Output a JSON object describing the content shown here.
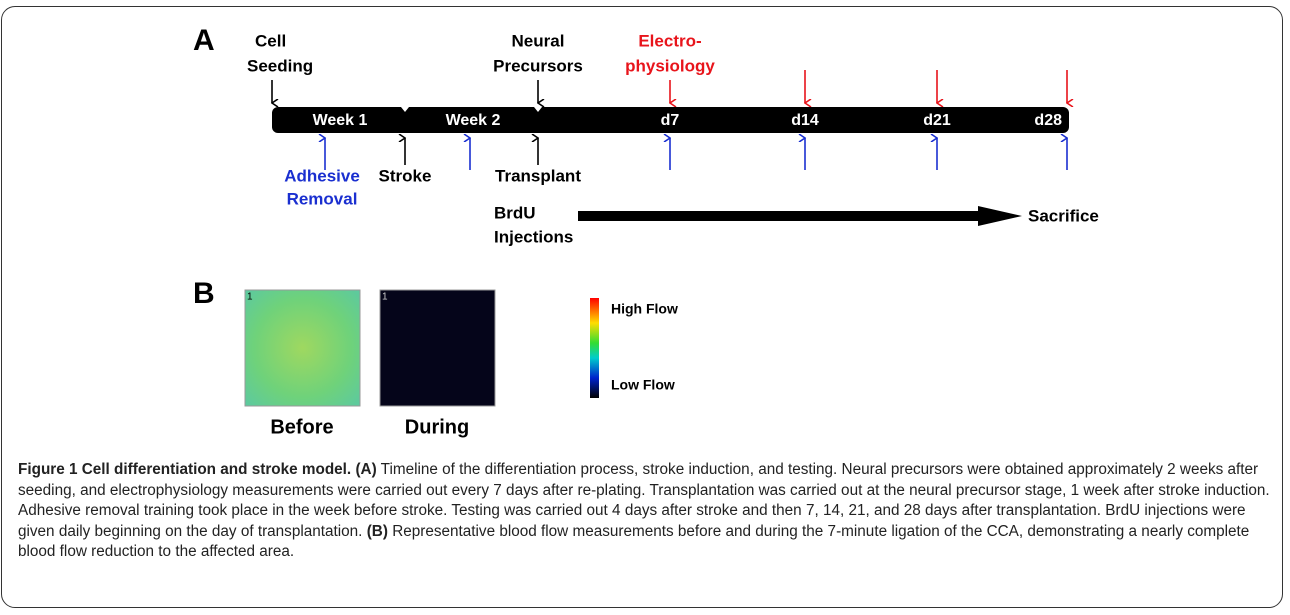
{
  "panel_a": {
    "label": "A",
    "cell_seeding": [
      "Cell",
      "Seeding"
    ],
    "neural_precursors": [
      "Neural",
      "Precursors"
    ],
    "electrophysiology": [
      "Electro-",
      "physiology"
    ],
    "timeline": [
      "Week 1",
      "Week 2",
      "d7",
      "d14",
      "d21",
      "d28"
    ],
    "adhesive_removal": [
      "Adhesive",
      "Removal"
    ],
    "stroke": "Stroke",
    "transplant": "Transplant",
    "brdu_injections": [
      "BrdU",
      "Injections"
    ],
    "sacrifice": "Sacrifice"
  },
  "panel_b": {
    "label": "B",
    "image_number": "1",
    "before": "Before",
    "during": "During",
    "high_flow": "High Flow",
    "low_flow": "Low Flow"
  },
  "caption": {
    "title": "Figure 1 Cell differentiation and stroke model.",
    "a_label": "(A)",
    "a_text": "Timeline of the differentiation process, stroke induction, and testing. Neural precursors were obtained approximately 2 weeks after seeding, and electrophysiology measurements were carried out every 7 days after re-plating. Transplantation was carried out at the neural precursor stage, 1 week after stroke induction. Adhesive removal training took place in the week before stroke. Testing was carried out 4 days after stroke and then 7, 14, 21, and 28 days after transplantation. BrdU injections were given daily beginning on the day of transplantation.",
    "b_label": "(B)",
    "b_text": "Representative blood flow measurements before and during the 7-minute ligation of the CCA, demonstrating a nearly complete blood flow reduction to the affected area."
  }
}
